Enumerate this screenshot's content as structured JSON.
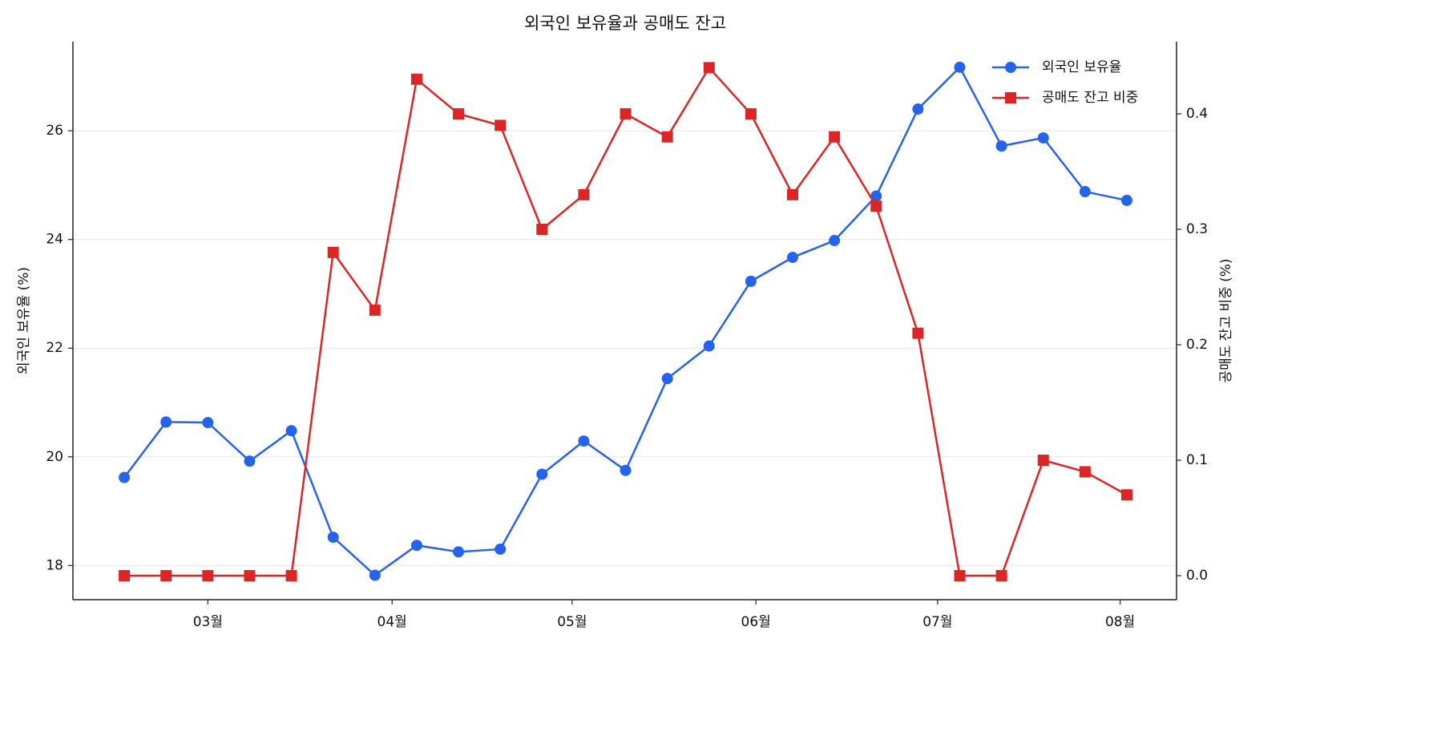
{
  "chart_data": {
    "type": "line",
    "title": "외국인 보유율과 공매도 잔고",
    "x": [
      0,
      1,
      2,
      3,
      4,
      5,
      6,
      7,
      8,
      9,
      10,
      11,
      12,
      13,
      14,
      15,
      16,
      17,
      18,
      19,
      20,
      21,
      22,
      23,
      24
    ],
    "xlim": [
      -1.23,
      25.19
    ],
    "xticks": [
      {
        "value": 2.0,
        "label": "03월"
      },
      {
        "value": 6.41,
        "label": "04월"
      },
      {
        "value": 10.72,
        "label": "05월"
      },
      {
        "value": 15.12,
        "label": "06월"
      },
      {
        "value": 19.47,
        "label": "07월"
      },
      {
        "value": 23.84,
        "label": "08월"
      }
    ],
    "ylabel": "외국인 보유율 (%)",
    "ylim": [
      17.37,
      27.64
    ],
    "yticks": [
      18,
      20,
      22,
      24,
      26
    ],
    "y2label": "공매도 잔고 비중 (%)",
    "y2lim": [
      -0.0208,
      0.4625
    ],
    "y2ticks": [
      {
        "value": 0,
        "label": "0.0"
      },
      0.1,
      0.2,
      0.3,
      0.4
    ],
    "grid": true,
    "legend": "upper right",
    "series": [
      {
        "name": "외국인 보유율",
        "color": "#2563eb",
        "marker": "circle",
        "values": [
          19.62,
          20.64,
          20.63,
          19.92,
          20.48,
          18.52,
          17.82,
          18.37,
          18.25,
          18.3,
          19.68,
          20.29,
          19.75,
          21.44,
          22.04,
          23.23,
          23.67,
          23.98,
          24.8,
          26.4,
          27.17,
          25.72,
          25.87,
          24.88,
          24.72
        ]
      },
      {
        "name": "공매도 잔고 비중",
        "color": "#dc2626",
        "marker": "square",
        "axis": "y2",
        "values": [
          0,
          0,
          0,
          0,
          0,
          0.28,
          0.23,
          0.43,
          0.4,
          0.39,
          0.3,
          0.33,
          0.4,
          0.38,
          0.44,
          0.4,
          0.33,
          0.38,
          0.32,
          0.21,
          0,
          0,
          0.1,
          0.09,
          0.07
        ]
      }
    ]
  }
}
